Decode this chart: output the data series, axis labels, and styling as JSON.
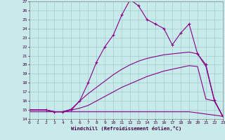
{
  "xlabel": "Windchill (Refroidissement éolien,°C)",
  "bg_color": "#c8eaea",
  "line_color": "#880088",
  "xlim": [
    0,
    23
  ],
  "ylim": [
    14,
    27
  ],
  "xticks": [
    0,
    1,
    2,
    3,
    4,
    5,
    6,
    7,
    8,
    9,
    10,
    11,
    12,
    13,
    14,
    15,
    16,
    17,
    18,
    19,
    20,
    21,
    22,
    23
  ],
  "yticks": [
    14,
    15,
    16,
    17,
    18,
    19,
    20,
    21,
    22,
    23,
    24,
    25,
    26,
    27
  ],
  "grid_color": "#9ecece",
  "series": [
    {
      "x": [
        0,
        19,
        23
      ],
      "y": [
        14.8,
        14.8,
        14.3
      ],
      "marker": null,
      "linestyle": "-",
      "lw": 0.8
    },
    {
      "x": [
        0,
        2,
        3,
        4,
        5,
        6,
        7,
        8,
        9,
        10,
        11,
        12,
        13,
        14,
        15,
        16,
        17,
        18,
        19,
        20,
        21,
        22,
        23
      ],
      "y": [
        15.0,
        15.0,
        14.8,
        14.8,
        15.0,
        15.2,
        15.5,
        16.0,
        16.5,
        17.0,
        17.5,
        17.9,
        18.3,
        18.7,
        19.0,
        19.3,
        19.5,
        19.7,
        19.9,
        19.8,
        16.2,
        16.0,
        14.3
      ],
      "marker": null,
      "linestyle": "-",
      "lw": 0.8
    },
    {
      "x": [
        0,
        2,
        3,
        4,
        5,
        6,
        7,
        8,
        9,
        10,
        11,
        12,
        13,
        14,
        15,
        16,
        17,
        18,
        19,
        20,
        21,
        22,
        23
      ],
      "y": [
        15.0,
        15.0,
        14.8,
        14.8,
        15.1,
        16.0,
        16.8,
        17.5,
        18.2,
        18.9,
        19.5,
        20.0,
        20.4,
        20.7,
        20.9,
        21.1,
        21.2,
        21.3,
        21.4,
        21.2,
        19.8,
        16.0,
        14.3
      ],
      "marker": null,
      "linestyle": "-",
      "lw": 0.8
    },
    {
      "x": [
        0,
        2,
        3,
        4,
        5,
        6,
        7,
        8,
        9,
        10,
        11,
        12,
        13,
        14,
        15,
        16,
        17,
        18,
        19,
        20,
        21,
        22,
        23
      ],
      "y": [
        15.0,
        15.0,
        14.8,
        14.8,
        15.0,
        16.0,
        18.0,
        20.3,
        22.0,
        23.3,
        25.5,
        27.2,
        26.5,
        25.0,
        24.5,
        24.0,
        22.2,
        23.5,
        24.5,
        21.2,
        20.0,
        16.1,
        14.3
      ],
      "marker": "+",
      "linestyle": "-",
      "lw": 0.8
    }
  ]
}
